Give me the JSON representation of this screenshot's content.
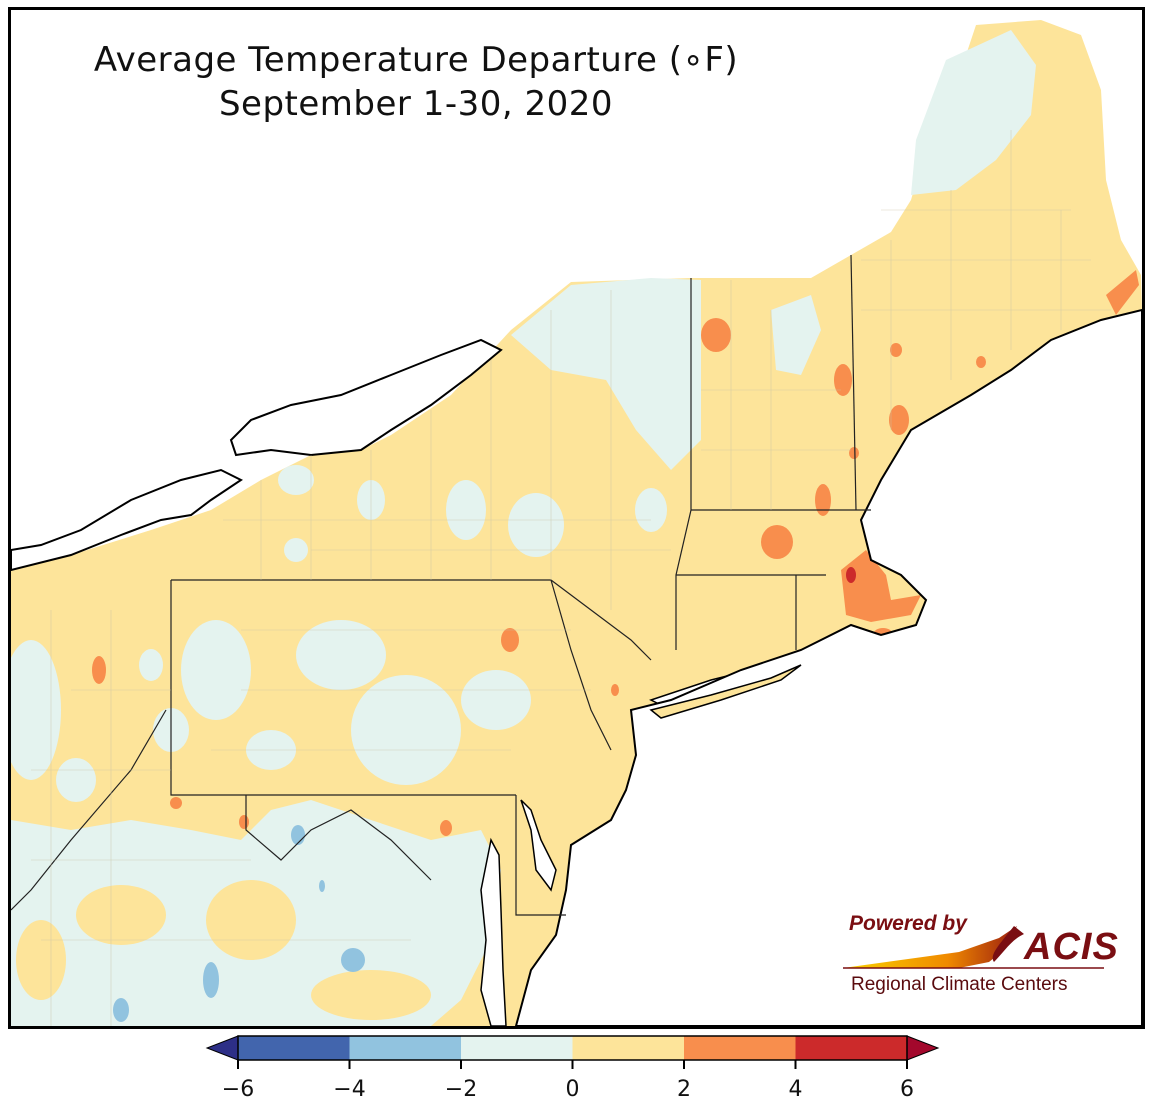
{
  "title": {
    "line1": "Average Temperature Departure (∘F)",
    "line2": "September 1-30, 2020"
  },
  "colorbar": {
    "ticks": [
      "−6",
      "−4",
      "−2",
      "0",
      "2",
      "4",
      "6"
    ],
    "bins": [
      {
        "range": [
          -6,
          -4
        ],
        "color": "#4265ad"
      },
      {
        "range": [
          -4,
          -2
        ],
        "color": "#91c3df"
      },
      {
        "range": [
          -2,
          0
        ],
        "color": "#e4f3ef"
      },
      {
        "range": [
          0,
          2
        ],
        "color": "#fde49a"
      },
      {
        "range": [
          2,
          4
        ],
        "color": "#f88e4d"
      },
      {
        "range": [
          4,
          6
        ],
        "color": "#cc2a2b"
      }
    ],
    "extend_low_color": "#2d2f87",
    "extend_high_color": "#a3082c"
  },
  "logo": {
    "powered": "Powered by",
    "brand": "ACIS",
    "sub": "Regional Climate Centers"
  }
}
